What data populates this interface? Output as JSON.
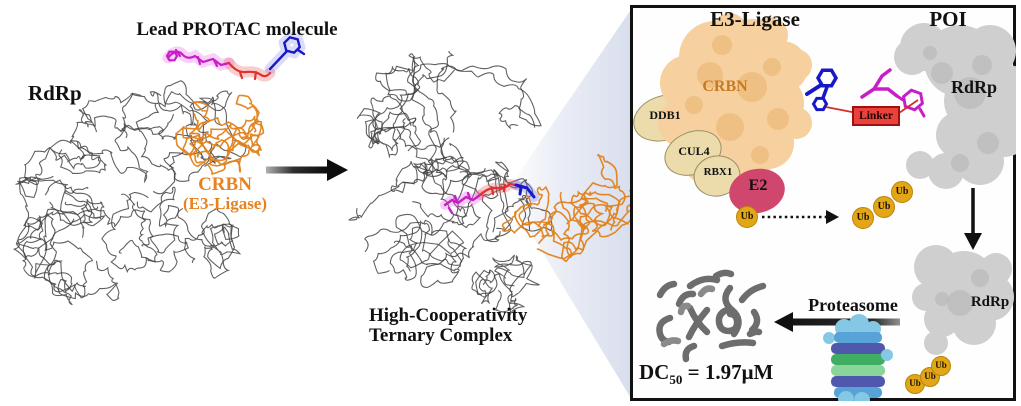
{
  "colors": {
    "background": "#ffffff",
    "text": "#111111",
    "panel_border": "#111111",
    "orange_label": "#e8821e",
    "crbn_text": "#c87a20",
    "ribbon_gray": "#3d3d3d",
    "ribbon_orange": "#e0821c",
    "crbn_blob": "#f6d09e",
    "crbn_blob_patch": "#eab26d",
    "tan_fill": "#ecdcab",
    "tan_stroke": "#9a8f68",
    "e2_fill": "#cf476d",
    "ub_fill": "#e2a616",
    "linker_fill": "#e8423a",
    "linker_border": "#a01010",
    "molecule_red": "#e03030",
    "molecule_magenta": "#c81ec8",
    "molecule_blue": "#1818c8",
    "gray_blob": "#cfcfcf",
    "gray_blob_patch": "#b6b6b6",
    "peptide_gray": "#6d6d6d",
    "callout": "#d9deec"
  },
  "left": {
    "lead_protac_label": "Lead PROTAC molecule",
    "rdrp_label": "RdRp",
    "crbn_label": "CRBN",
    "crbn_sublabel": "(E3-Ligase)"
  },
  "middle": {
    "complex_line1": "High-Cooperativity",
    "complex_line2": "Ternary Complex"
  },
  "panel": {
    "e3_ligase_header": "E3-Ligase",
    "poi_header": "POI",
    "crbn_label": "CRBN",
    "ddb1_label": "DDB1",
    "cul4_label": "CUL4",
    "rbx1_label": "RBX1",
    "e2_label": "E2",
    "linker_label": "Linker",
    "rdrp_top_label": "RdRp",
    "rdrp_bottom_label": "RdRp",
    "ub_label": "Ub",
    "proteasome_label": "Proteasome",
    "dc50_prefix": "DC",
    "dc50_subscript": "50",
    "dc50_value": " = 1.97μM"
  }
}
